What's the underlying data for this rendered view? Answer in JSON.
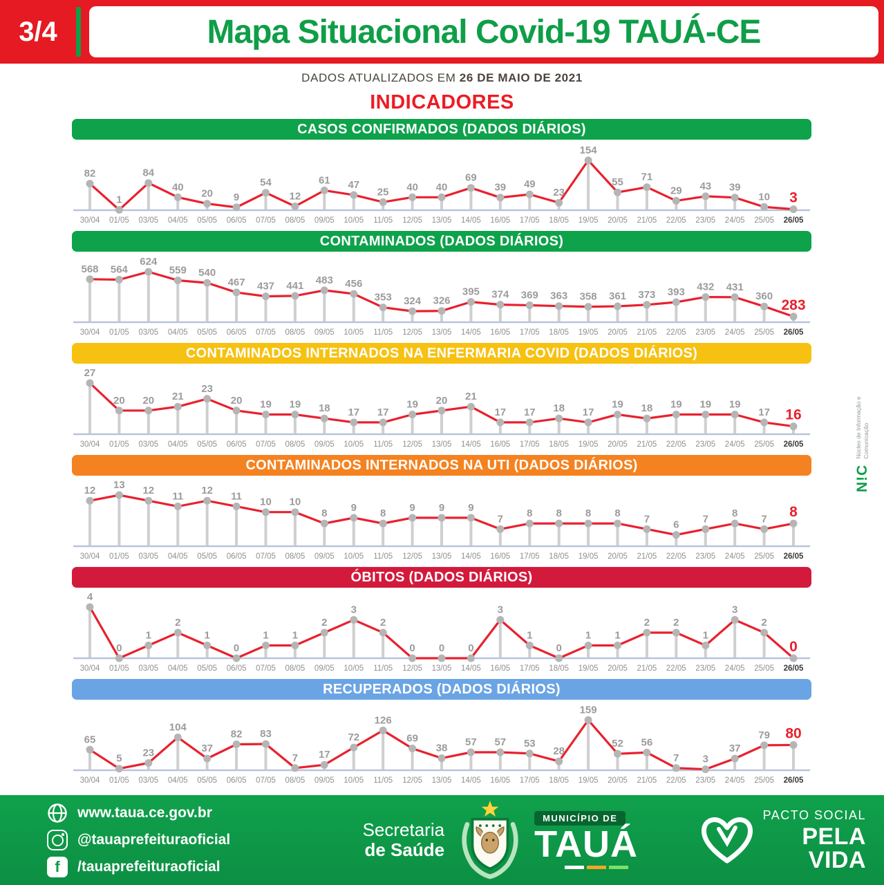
{
  "header": {
    "page_badge": "3/4",
    "title": "Mapa Situacional Covid-19 TAUÁ-CE",
    "subtitle_prefix": "DADOS ATUALIZADOS EM",
    "subtitle_date": "26 DE MAIO DE 2021",
    "section_title": "INDICADORES",
    "bar_color": "#e51a22",
    "title_color": "#0f9e48"
  },
  "colors": {
    "line": "#e8212e",
    "value_label": "#9b9b9b",
    "last_value_label": "#e8212e",
    "stem": "#cfcfcf",
    "dot": "#b5b5b5",
    "baseline": "#b8c4d8",
    "axis_label": "#8f8f8f",
    "axis_label_last": "#3a3a3a"
  },
  "chart_data": [
    {
      "type": "line",
      "title": "CASOS CONFIRMADOS (DADOS DIÁRIOS)",
      "header_color": "#0ea24b",
      "categories": [
        "30/04",
        "01/05",
        "03/05",
        "04/05",
        "05/05",
        "06/05",
        "07/05",
        "08/05",
        "09/05",
        "10/05",
        "11/05",
        "12/05",
        "13/05",
        "14/05",
        "16/05",
        "17/05",
        "18/05",
        "19/05",
        "20/05",
        "21/05",
        "22/05",
        "23/05",
        "24/05",
        "25/05",
        "26/05"
      ],
      "values": [
        82,
        1,
        84,
        40,
        20,
        9,
        54,
        12,
        61,
        47,
        25,
        40,
        40,
        69,
        39,
        49,
        23,
        154,
        55,
        71,
        29,
        43,
        39,
        10,
        3
      ],
      "ylim": [
        0,
        158
      ],
      "legend": "none",
      "grid": false
    },
    {
      "type": "line",
      "title": "CONTAMINADOS (DADOS DIÁRIOS)",
      "header_color": "#0ea24b",
      "categories": [
        "30/04",
        "01/05",
        "03/05",
        "04/05",
        "05/05",
        "06/05",
        "07/05",
        "08/05",
        "09/05",
        "10/05",
        "11/05",
        "12/05",
        "13/05",
        "14/05",
        "16/05",
        "17/05",
        "18/05",
        "19/05",
        "20/05",
        "21/05",
        "22/05",
        "23/05",
        "24/05",
        "25/05",
        "26/05"
      ],
      "values": [
        568,
        564,
        624,
        559,
        540,
        467,
        437,
        441,
        483,
        456,
        353,
        324,
        326,
        395,
        374,
        369,
        363,
        358,
        361,
        373,
        393,
        432,
        431,
        360,
        283
      ],
      "ylim": [
        240,
        630
      ],
      "legend": "none",
      "grid": false
    },
    {
      "type": "line",
      "title": "CONTAMINADOS INTERNADOS NA ENFERMARIA COVID (DADOS DIÁRIOS)",
      "header_color": "#f6c110",
      "categories": [
        "30/04",
        "01/05",
        "03/05",
        "04/05",
        "05/05",
        "06/05",
        "07/05",
        "08/05",
        "09/05",
        "10/05",
        "11/05",
        "12/05",
        "13/05",
        "14/05",
        "16/05",
        "17/05",
        "18/05",
        "19/05",
        "20/05",
        "21/05",
        "22/05",
        "23/05",
        "24/05",
        "25/05",
        "26/05"
      ],
      "values": [
        27,
        20,
        20,
        21,
        23,
        20,
        19,
        19,
        18,
        17,
        17,
        19,
        20,
        21,
        17,
        17,
        18,
        17,
        19,
        18,
        19,
        19,
        19,
        17,
        16
      ],
      "ylim": [
        14,
        27
      ],
      "legend": "none",
      "grid": false
    },
    {
      "type": "line",
      "title": "CONTAMINADOS INTERNADOS NA UTI (DADOS DIÁRIOS)",
      "header_color": "#f58220",
      "categories": [
        "30/04",
        "01/05",
        "03/05",
        "04/05",
        "05/05",
        "06/05",
        "07/05",
        "08/05",
        "09/05",
        "10/05",
        "11/05",
        "12/05",
        "13/05",
        "14/05",
        "16/05",
        "17/05",
        "18/05",
        "19/05",
        "20/05",
        "21/05",
        "22/05",
        "23/05",
        "24/05",
        "25/05",
        "26/05"
      ],
      "values": [
        12,
        13,
        12,
        11,
        12,
        11,
        10,
        10,
        8,
        9,
        8,
        9,
        9,
        9,
        7,
        8,
        8,
        8,
        8,
        7,
        6,
        7,
        8,
        7,
        8
      ],
      "ylim": [
        4,
        13
      ],
      "legend": "none",
      "grid": false
    },
    {
      "type": "line",
      "title": "ÓBITOS (DADOS DIÁRIOS)",
      "header_color": "#d31a3c",
      "categories": [
        "30/04",
        "01/05",
        "03/05",
        "04/05",
        "05/05",
        "06/05",
        "07/05",
        "08/05",
        "09/05",
        "10/05",
        "11/05",
        "12/05",
        "13/05",
        "14/05",
        "16/05",
        "17/05",
        "18/05",
        "19/05",
        "20/05",
        "21/05",
        "22/05",
        "23/05",
        "24/05",
        "25/05",
        "26/05"
      ],
      "values": [
        4,
        0,
        1,
        2,
        1,
        0,
        1,
        1,
        2,
        3,
        2,
        0,
        0,
        0,
        3,
        1,
        0,
        1,
        1,
        2,
        2,
        1,
        3,
        2,
        0
      ],
      "ylim": [
        0,
        4
      ],
      "legend": "none",
      "grid": false
    },
    {
      "type": "line",
      "title": "RECUPERADOS (DADOS DIÁRIOS)",
      "header_color": "#6aa4e4",
      "categories": [
        "30/04",
        "01/05",
        "03/05",
        "04/05",
        "05/05",
        "06/05",
        "07/05",
        "08/05",
        "09/05",
        "10/05",
        "11/05",
        "12/05",
        "13/05",
        "14/05",
        "16/05",
        "17/05",
        "18/05",
        "19/05",
        "20/05",
        "21/05",
        "22/05",
        "23/05",
        "24/05",
        "25/05",
        "26/05"
      ],
      "values": [
        65,
        5,
        23,
        104,
        37,
        82,
        83,
        7,
        17,
        72,
        126,
        69,
        38,
        57,
        57,
        53,
        28,
        159,
        52,
        56,
        7,
        3,
        37,
        79,
        80
      ],
      "ylim": [
        0,
        162
      ],
      "legend": "none",
      "grid": false
    }
  ],
  "side_note": {
    "logo": "N!C",
    "caption": "Núcleo de Informação e Comunicação"
  },
  "footer": {
    "website": "www.taua.ce.gov.br",
    "instagram": "@tauaprefeituraoficial",
    "facebook": "/tauaprefeituraoficial",
    "facebook_icon_glyph": "f",
    "secretaria_line1": "Secretaria",
    "secretaria_line2": "de Saúde",
    "municipio_label": "MUNICÍPIO DE",
    "municipio_name": "TAUÁ",
    "pacto_line1": "PACTO SOCIAL",
    "pacto_line2": "PELA",
    "pacto_line3": "VIDA",
    "background_color": "#0f9f4a"
  }
}
